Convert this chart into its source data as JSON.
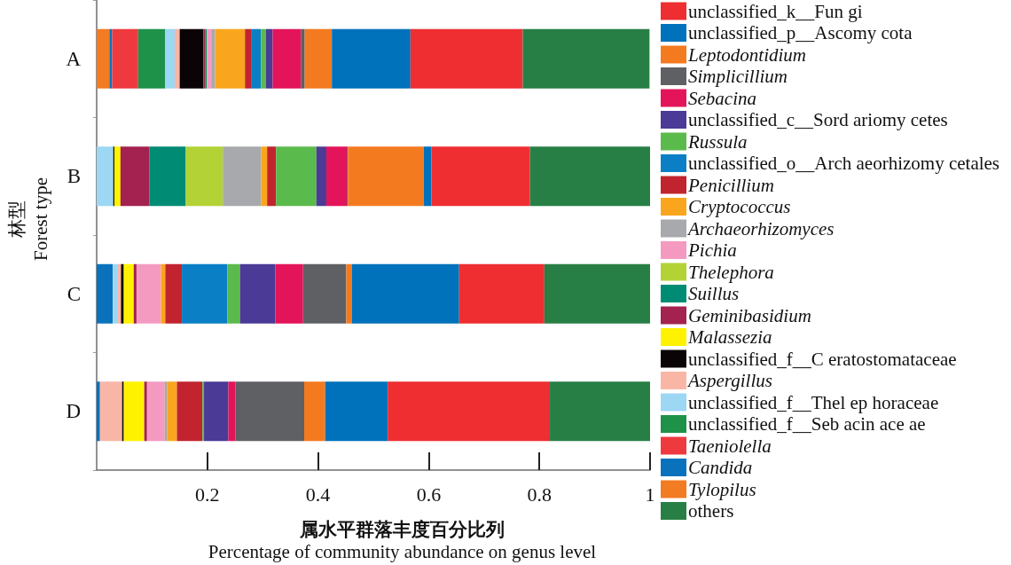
{
  "chart_data": {
    "type": "bar",
    "orientation": "horizontal",
    "stacked": true,
    "categories": [
      "A",
      "B",
      "C",
      "D"
    ],
    "xlim": [
      0,
      1
    ],
    "xticks": [
      0.2,
      0.4,
      0.6,
      0.8,
      1
    ],
    "xlabel": "属水平群落丰度百分比列\nPercentage of community abundance on genus level",
    "ylabel": "林型\nForest type",
    "legend": "right",
    "grid": false,
    "series": [
      {
        "name": "Tylopilus",
        "color": "#f37b22",
        "values": [
          0.023,
          0,
          0,
          0
        ]
      },
      {
        "name": "Candida",
        "color": "#0a72bc",
        "values": [
          0.005,
          0,
          0.029,
          0.006
        ]
      },
      {
        "name": "Taeniolella",
        "color": "#ee3a3f",
        "values": [
          0.047,
          0,
          0,
          0
        ]
      },
      {
        "name": "unclassified_f__Seb acin ace ae",
        "color": "#1e9249",
        "values": [
          0.049,
          0,
          0,
          0
        ]
      },
      {
        "name": "unclassified_f__Thel ep horaceae",
        "color": "#9cd7f4",
        "values": [
          0.017,
          0.03,
          0.008,
          0
        ]
      },
      {
        "name": "Aspergillus",
        "color": "#f9b6a6",
        "values": [
          0.009,
          0,
          0.007,
          0.04
        ]
      },
      {
        "name": "unclassified_f__C eratostomataceae",
        "color": "#0a0406",
        "values": [
          0.043,
          0.002,
          0.005,
          0.003
        ]
      },
      {
        "name": "Malassezia",
        "color": "#fff200",
        "values": [
          0,
          0.011,
          0.018,
          0.037
        ]
      },
      {
        "name": "Geminibasidium",
        "color": "#a3224f",
        "values": [
          0.003,
          0.052,
          0.005,
          0.005
        ]
      },
      {
        "name": "Suillus",
        "color": "#008b74",
        "values": [
          0.003,
          0.066,
          0,
          0
        ]
      },
      {
        "name": "Thelephora",
        "color": "#b2d235",
        "values": [
          0.001,
          0.067,
          0,
          0
        ]
      },
      {
        "name": "Pichia",
        "color": "#f49ac1",
        "values": [
          0.007,
          0,
          0.044,
          0.032
        ]
      },
      {
        "name": "Archaeorhizomyces",
        "color": "#a7a9ac",
        "values": [
          0.007,
          0.069,
          0,
          0.004
        ]
      },
      {
        "name": "Cryptococcus",
        "color": "#f9a61e",
        "values": [
          0.054,
          0.011,
          0.008,
          0.018
        ]
      },
      {
        "name": "Penicillium",
        "color": "#c1242f",
        "values": [
          0.011,
          0.016,
          0.03,
          0.046
        ]
      },
      {
        "name": "unclassified_o__Arch aeorhizomy cetales",
        "color": "#0a7fc6",
        "values": [
          0.018,
          0,
          0.082,
          0
        ]
      },
      {
        "name": "Russula",
        "color": "#5bba4c",
        "values": [
          0.009,
          0.073,
          0.023,
          0.003
        ]
      },
      {
        "name": "unclassified_c__Sord ariomy cetes",
        "color": "#4b3a96",
        "values": [
          0.012,
          0.018,
          0.064,
          0.044
        ]
      },
      {
        "name": "Sebacina",
        "color": "#e4145a",
        "values": [
          0.051,
          0.037,
          0.05,
          0.013
        ]
      },
      {
        "name": "Simplicillium",
        "color": "#5e6064",
        "values": [
          0.007,
          0.002,
          0.078,
          0.124
        ]
      },
      {
        "name": "Leptodontidium",
        "color": "#f47a20",
        "values": [
          0.049,
          0.137,
          0.01,
          0.038
        ]
      },
      {
        "name": "unclassified_p__Ascomy cota",
        "color": "#0071bb",
        "values": [
          0.142,
          0.014,
          0.194,
          0.113
        ]
      },
      {
        "name": "unclassified_k__Fun gi",
        "color": "#ee2e31",
        "values": [
          0.203,
          0.178,
          0.154,
          0.293
        ]
      },
      {
        "name": "others",
        "color": "#277f46",
        "values": [
          0.229,
          0.217,
          0.191,
          0.181
        ]
      }
    ]
  }
}
